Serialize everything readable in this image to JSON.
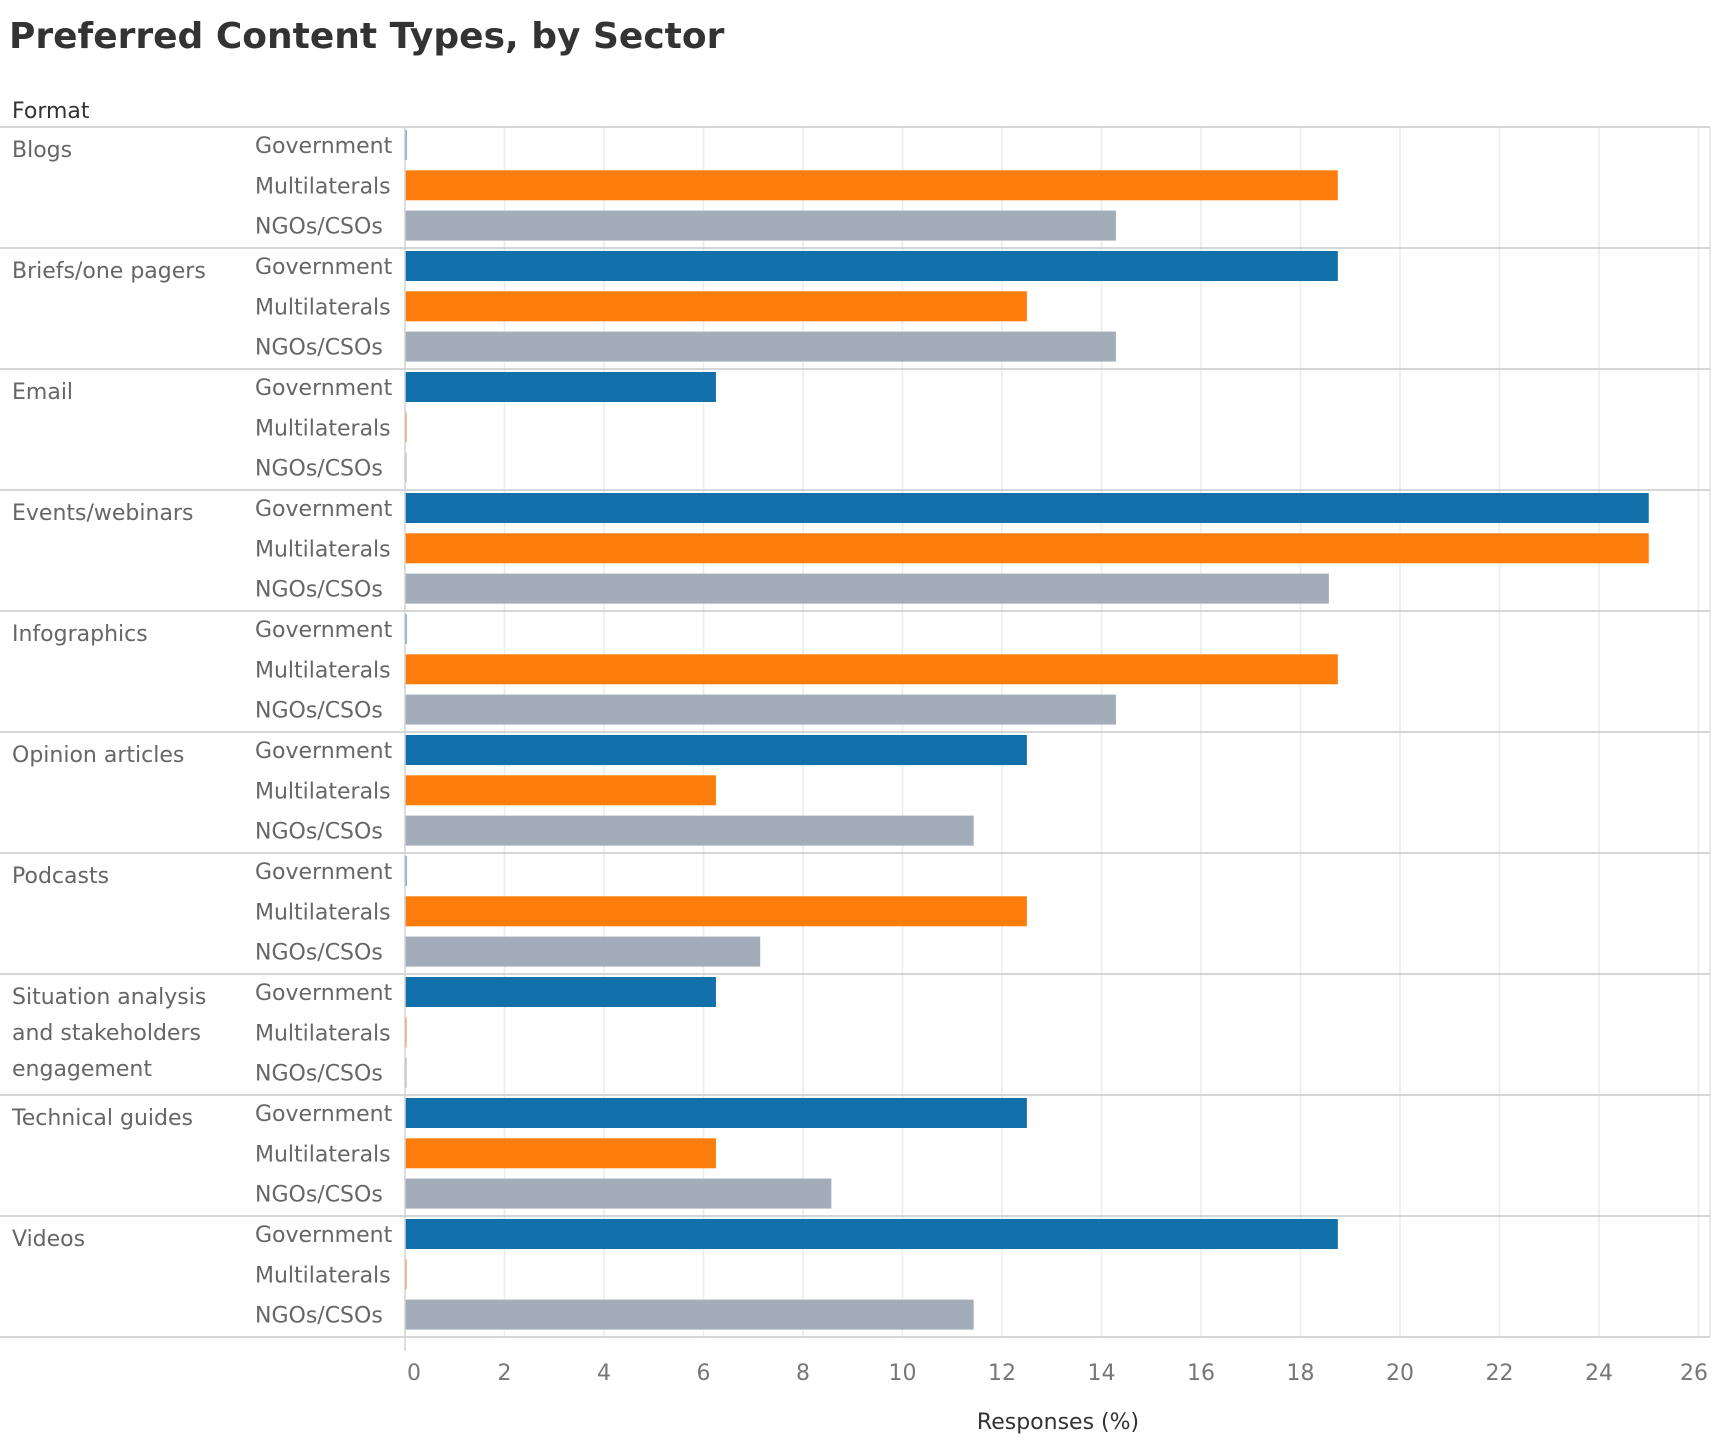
{
  "chart_data": {
    "type": "bar",
    "orientation": "horizontal",
    "title": "Preferred Content Types, by Sector",
    "row_header": "Format",
    "xlabel": "Responses (%)",
    "xlim": [
      0,
      26
    ],
    "xticks": [
      0,
      2,
      4,
      6,
      8,
      10,
      12,
      14,
      16,
      18,
      20,
      22,
      24,
      26
    ],
    "grid": true,
    "sectors": [
      "Government",
      "Multilaterals",
      "NGOs/CSOs"
    ],
    "colors": {
      "Government": "#1170aa",
      "Multilaterals": "#fc7d0b",
      "NGOs/CSOs": "#a3acb9"
    },
    "categories": [
      {
        "label": [
          "Blogs"
        ],
        "values": [
          0,
          18.75,
          14.29
        ]
      },
      {
        "label": [
          "Briefs/one pagers"
        ],
        "values": [
          18.75,
          12.5,
          14.29
        ]
      },
      {
        "label": [
          "Email"
        ],
        "values": [
          6.25,
          0,
          0
        ]
      },
      {
        "label": [
          "Events/webinars"
        ],
        "values": [
          25,
          25,
          18.57
        ]
      },
      {
        "label": [
          "Infographics"
        ],
        "values": [
          0,
          18.75,
          14.29
        ]
      },
      {
        "label": [
          "Opinion articles"
        ],
        "values": [
          12.5,
          6.25,
          11.43
        ]
      },
      {
        "label": [
          "Podcasts"
        ],
        "values": [
          0,
          12.5,
          7.14
        ]
      },
      {
        "label": [
          "Situation analysis",
          "and stakeholders",
          "engagement"
        ],
        "values": [
          6.25,
          0,
          0
        ]
      },
      {
        "label": [
          "Technical guides"
        ],
        "values": [
          12.5,
          6.25,
          8.57
        ]
      },
      {
        "label": [
          "Videos"
        ],
        "values": [
          18.75,
          0,
          11.43
        ]
      }
    ]
  }
}
